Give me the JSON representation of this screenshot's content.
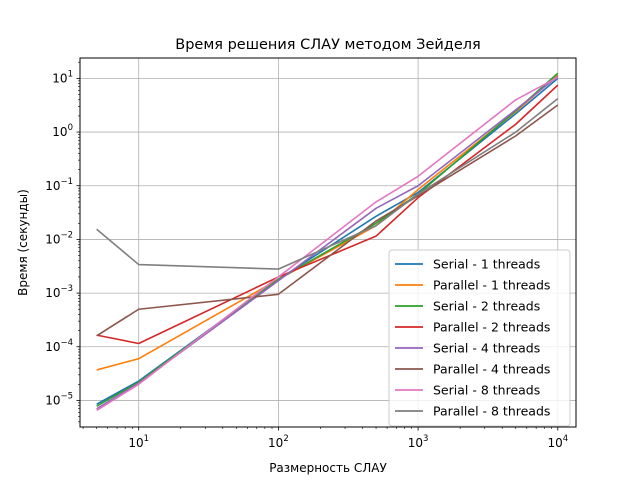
{
  "chart_data": {
    "type": "line",
    "title": "Время решения СЛАУ методом Зейделя",
    "xlabel": "Размерность СЛАУ",
    "ylabel": "Время (секунды)",
    "xscale": "log",
    "yscale": "log",
    "xlim": [
      3.8,
      13500
    ],
    "ylim": [
      3.2e-06,
      24
    ],
    "x_ticks": [
      {
        "base": "10",
        "exp": "1",
        "value": 10
      },
      {
        "base": "10",
        "exp": "2",
        "value": 100
      },
      {
        "base": "10",
        "exp": "3",
        "value": 1000
      },
      {
        "base": "10",
        "exp": "4",
        "value": 10000
      }
    ],
    "y_ticks": [
      {
        "base": "10",
        "exp": "−5",
        "value": 1e-05
      },
      {
        "base": "10",
        "exp": "−4",
        "value": 0.0001
      },
      {
        "base": "10",
        "exp": "−3",
        "value": 0.001
      },
      {
        "base": "10",
        "exp": "−2",
        "value": 0.01
      },
      {
        "base": "10",
        "exp": "−1",
        "value": 0.1
      },
      {
        "base": "10",
        "exp": "0",
        "value": 1
      },
      {
        "base": "10",
        "exp": "1",
        "value": 10
      }
    ],
    "grid": true,
    "legend_position": "lower-right",
    "x": [
      5,
      10,
      100,
      500,
      1000,
      5000,
      10000
    ],
    "series": [
      {
        "name": "Serial - 1 threads",
        "color": "#1f77b4",
        "values": [
          8.5e-06,
          2.3e-05,
          0.0018,
          0.027,
          0.075,
          2.2,
          10.0
        ]
      },
      {
        "name": "Parallel - 1 threads",
        "color": "#ff7f0e",
        "values": [
          3.7e-05,
          6e-05,
          0.0018,
          0.018,
          0.085,
          2.4,
          11.5
        ]
      },
      {
        "name": "Serial - 2 threads",
        "color": "#2ca02c",
        "values": [
          7.8e-06,
          2.2e-05,
          0.0018,
          0.02,
          0.07,
          2.5,
          12.5
        ]
      },
      {
        "name": "Parallel - 2 threads",
        "color": "#d62728",
        "values": [
          0.000165,
          0.000115,
          0.002,
          0.0115,
          0.06,
          1.4,
          7.5
        ]
      },
      {
        "name": "Serial - 4 threads",
        "color": "#9467bd",
        "values": [
          7e-06,
          2.1e-05,
          0.0017,
          0.038,
          0.1,
          2.6,
          11.0
        ]
      },
      {
        "name": "Parallel - 4 threads",
        "color": "#8c564b",
        "values": [
          0.00016,
          0.0005,
          0.00095,
          0.022,
          0.065,
          0.85,
          3.2
        ]
      },
      {
        "name": "Serial - 8 threads",
        "color": "#e377c2",
        "values": [
          6.5e-06,
          2e-05,
          0.002,
          0.05,
          0.15,
          4.0,
          10.5
        ]
      },
      {
        "name": "Parallel - 8 threads",
        "color": "#7f7f7f",
        "values": [
          0.0155,
          0.0034,
          0.0028,
          0.018,
          0.07,
          1.0,
          4.2
        ]
      }
    ]
  }
}
